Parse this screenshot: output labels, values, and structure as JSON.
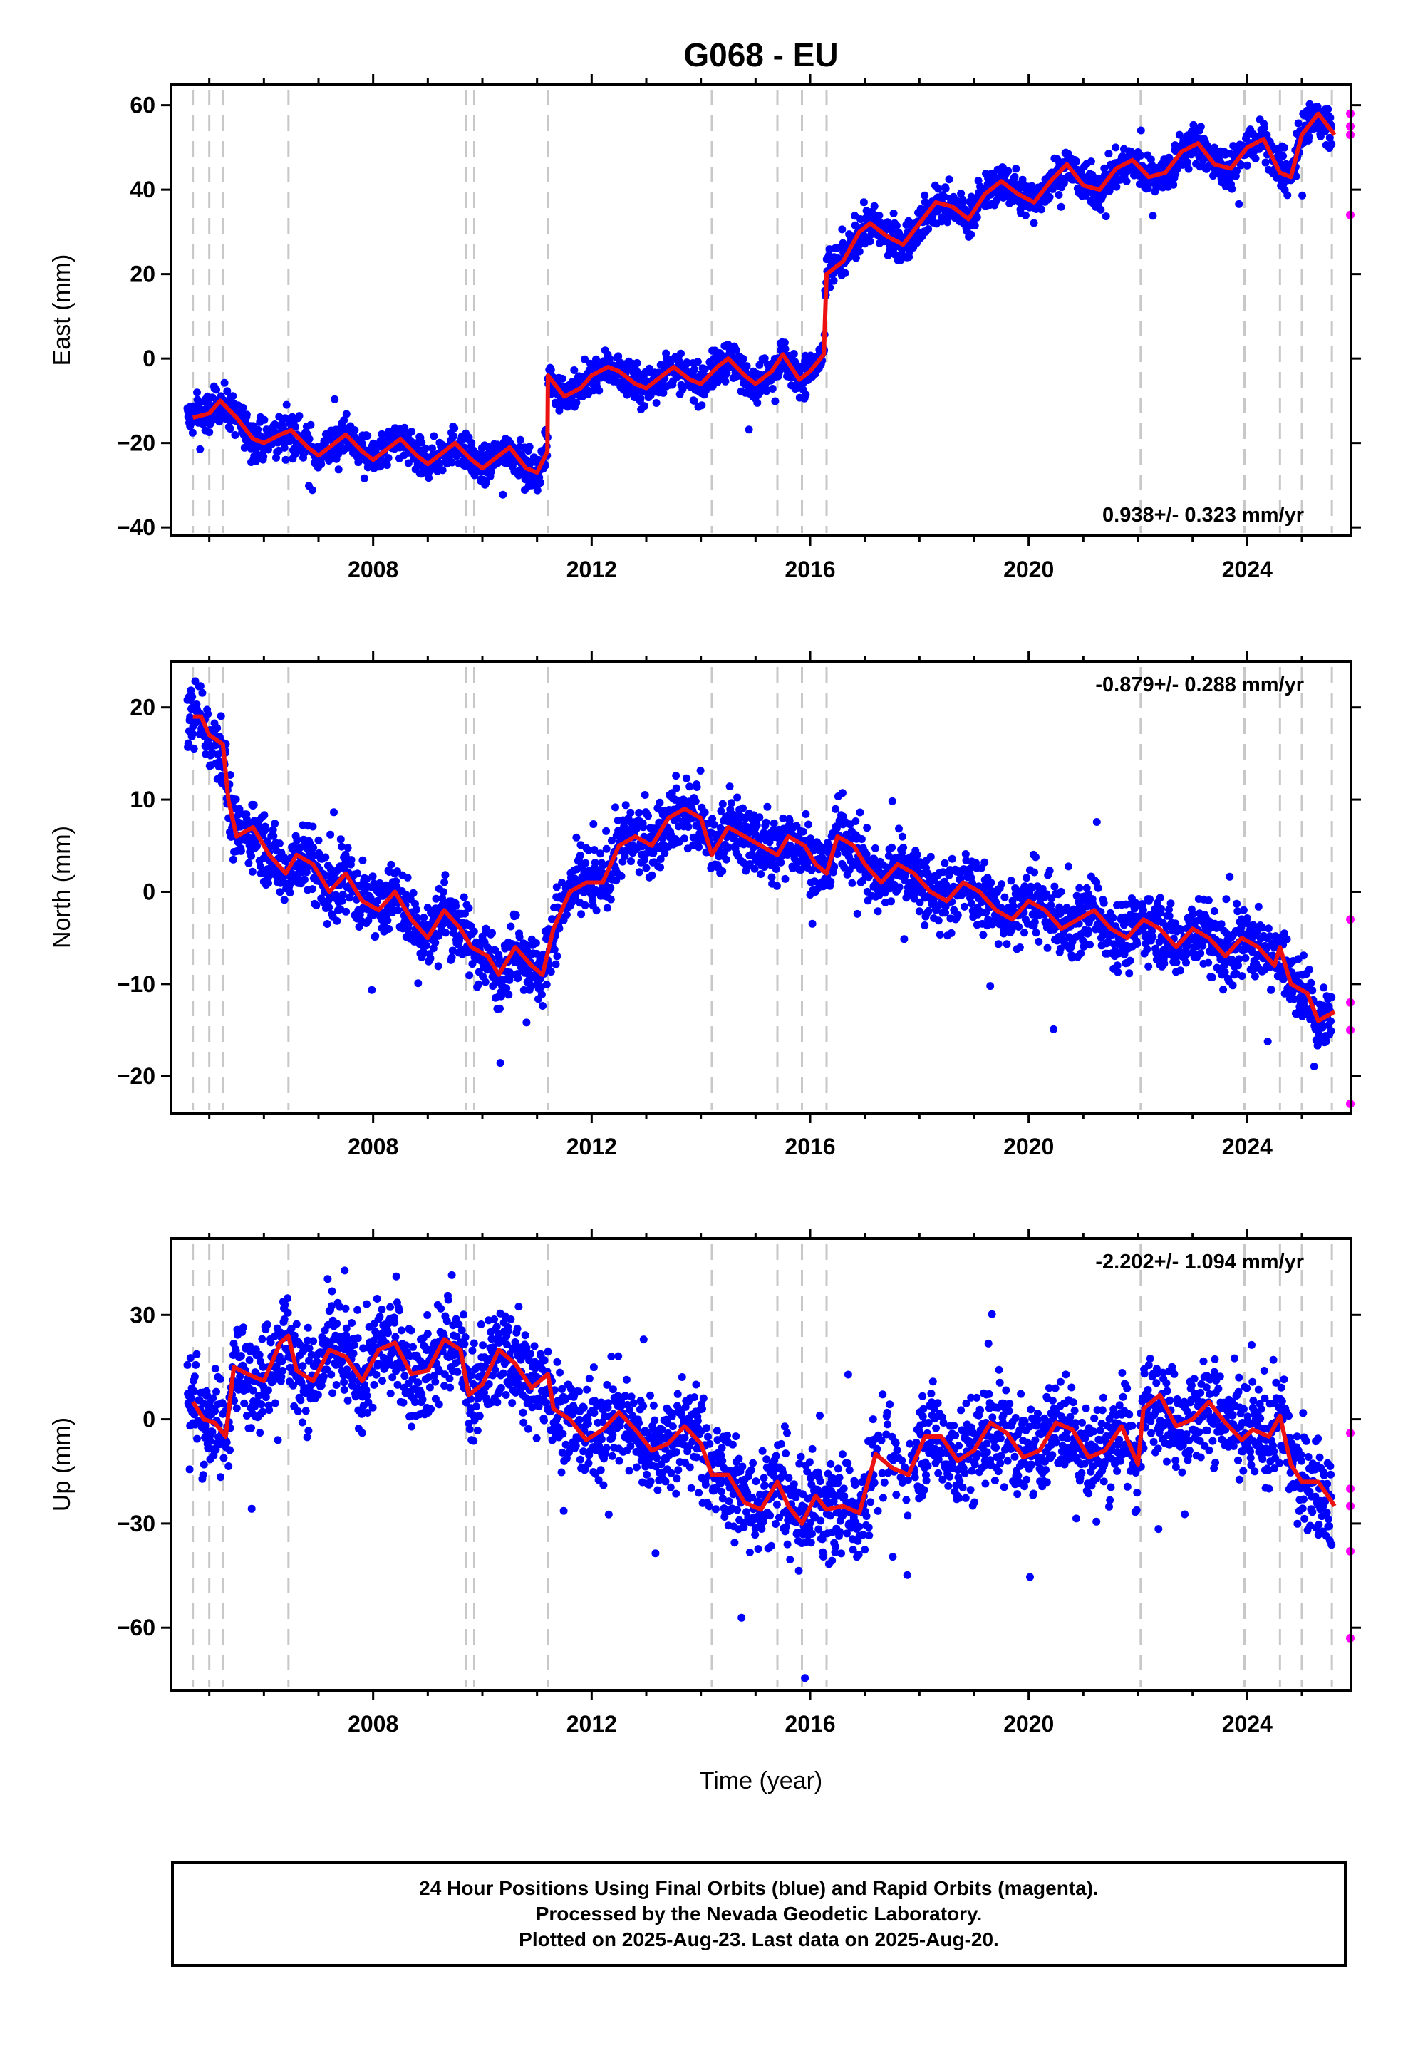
{
  "chart_data": {
    "type": "scatter",
    "title": "G068 - EU",
    "xlabel": "Time (year)",
    "x_ticks": [
      2008,
      2012,
      2016,
      2020,
      2024
    ],
    "xlim": [
      2004.3,
      2025.9
    ],
    "event_lines": [
      2004.7,
      2005.0,
      2005.25,
      2006.45,
      2009.7,
      2009.85,
      2011.2,
      2014.2,
      2015.4,
      2015.85,
      2016.3,
      2022.05,
      2023.95,
      2024.6,
      2025.0,
      2025.55
    ],
    "panels": [
      {
        "key": "east",
        "ylabel": "East (mm)",
        "ylim": [
          -42,
          65
        ],
        "y_ticks": [
          -40,
          -20,
          0,
          20,
          40,
          60
        ],
        "rate_label": "0.938+/- 0.323 mm/yr",
        "rate_position": "bottom-right",
        "trend": [
          [
            2004.7,
            -14
          ],
          [
            2005.0,
            -13
          ],
          [
            2005.2,
            -10
          ],
          [
            2005.5,
            -14
          ],
          [
            2005.8,
            -19
          ],
          [
            2006.0,
            -20
          ],
          [
            2006.3,
            -18
          ],
          [
            2006.5,
            -17
          ],
          [
            2006.8,
            -21
          ],
          [
            2007.0,
            -23
          ],
          [
            2007.3,
            -20
          ],
          [
            2007.5,
            -18
          ],
          [
            2007.8,
            -22
          ],
          [
            2008.0,
            -24
          ],
          [
            2008.3,
            -21
          ],
          [
            2008.5,
            -19
          ],
          [
            2008.8,
            -23
          ],
          [
            2009.0,
            -25
          ],
          [
            2009.3,
            -22
          ],
          [
            2009.5,
            -20
          ],
          [
            2009.8,
            -24
          ],
          [
            2010.0,
            -26
          ],
          [
            2010.3,
            -23
          ],
          [
            2010.5,
            -21
          ],
          [
            2010.8,
            -26
          ],
          [
            2011.0,
            -27
          ],
          [
            2011.19,
            -22
          ],
          [
            2011.2,
            -4
          ],
          [
            2011.5,
            -9
          ],
          [
            2011.8,
            -7
          ],
          [
            2012.0,
            -4
          ],
          [
            2012.3,
            -2
          ],
          [
            2012.5,
            -3
          ],
          [
            2012.8,
            -6
          ],
          [
            2013.0,
            -7
          ],
          [
            2013.3,
            -4
          ],
          [
            2013.5,
            -2
          ],
          [
            2013.8,
            -5
          ],
          [
            2014.0,
            -6
          ],
          [
            2014.3,
            -2
          ],
          [
            2014.5,
            0
          ],
          [
            2014.8,
            -4
          ],
          [
            2015.0,
            -6
          ],
          [
            2015.3,
            -3
          ],
          [
            2015.5,
            1
          ],
          [
            2015.8,
            -5
          ],
          [
            2016.0,
            -3
          ],
          [
            2016.25,
            1
          ],
          [
            2016.3,
            20
          ],
          [
            2016.6,
            23
          ],
          [
            2016.9,
            30
          ],
          [
            2017.1,
            32
          ],
          [
            2017.4,
            29
          ],
          [
            2017.7,
            27
          ],
          [
            2018.0,
            32
          ],
          [
            2018.3,
            37
          ],
          [
            2018.6,
            36
          ],
          [
            2018.9,
            33
          ],
          [
            2019.2,
            39
          ],
          [
            2019.5,
            42
          ],
          [
            2019.8,
            39
          ],
          [
            2020.1,
            37
          ],
          [
            2020.4,
            42
          ],
          [
            2020.7,
            46
          ],
          [
            2021.0,
            41
          ],
          [
            2021.3,
            40
          ],
          [
            2021.6,
            45
          ],
          [
            2021.9,
            47
          ],
          [
            2022.2,
            43
          ],
          [
            2022.5,
            44
          ],
          [
            2022.8,
            49
          ],
          [
            2023.1,
            51
          ],
          [
            2023.4,
            46
          ],
          [
            2023.7,
            45
          ],
          [
            2024.0,
            50
          ],
          [
            2024.3,
            52
          ],
          [
            2024.6,
            44
          ],
          [
            2024.8,
            43
          ],
          [
            2025.0,
            53
          ],
          [
            2025.3,
            58
          ],
          [
            2025.6,
            53
          ]
        ],
        "rapid_points": [
          [
            2025.6,
            58
          ],
          [
            2025.6,
            55
          ],
          [
            2025.6,
            53
          ],
          [
            2025.6,
            34
          ]
        ]
      },
      {
        "key": "north",
        "ylabel": "North (mm)",
        "ylim": [
          -24,
          25
        ],
        "y_ticks": [
          -20,
          -10,
          0,
          10,
          20
        ],
        "rate_label": "-0.879+/- 0.288 mm/yr",
        "rate_position": "top-right",
        "trend": [
          [
            2004.7,
            19
          ],
          [
            2004.85,
            19
          ],
          [
            2005.0,
            17
          ],
          [
            2005.25,
            16
          ],
          [
            2005.35,
            10
          ],
          [
            2005.5,
            6
          ],
          [
            2005.8,
            7
          ],
          [
            2006.1,
            4
          ],
          [
            2006.4,
            2
          ],
          [
            2006.6,
            4
          ],
          [
            2006.9,
            3
          ],
          [
            2007.2,
            0
          ],
          [
            2007.5,
            2
          ],
          [
            2007.8,
            -1
          ],
          [
            2008.1,
            -2
          ],
          [
            2008.4,
            0
          ],
          [
            2008.7,
            -3
          ],
          [
            2009.0,
            -5
          ],
          [
            2009.3,
            -2
          ],
          [
            2009.6,
            -4
          ],
          [
            2009.8,
            -6
          ],
          [
            2010.1,
            -7
          ],
          [
            2010.3,
            -9
          ],
          [
            2010.6,
            -6
          ],
          [
            2010.9,
            -8
          ],
          [
            2011.1,
            -9
          ],
          [
            2011.3,
            -4
          ],
          [
            2011.6,
            0
          ],
          [
            2011.9,
            1
          ],
          [
            2012.2,
            1
          ],
          [
            2012.5,
            5
          ],
          [
            2012.8,
            6
          ],
          [
            2013.1,
            5
          ],
          [
            2013.4,
            8
          ],
          [
            2013.7,
            9
          ],
          [
            2014.0,
            8
          ],
          [
            2014.2,
            4
          ],
          [
            2014.5,
            7
          ],
          [
            2014.8,
            6
          ],
          [
            2015.1,
            5
          ],
          [
            2015.4,
            4
          ],
          [
            2015.6,
            6
          ],
          [
            2015.9,
            5
          ],
          [
            2016.1,
            3
          ],
          [
            2016.3,
            2
          ],
          [
            2016.5,
            6
          ],
          [
            2016.8,
            5
          ],
          [
            2017.0,
            3
          ],
          [
            2017.3,
            1
          ],
          [
            2017.6,
            3
          ],
          [
            2017.9,
            2
          ],
          [
            2018.2,
            0
          ],
          [
            2018.5,
            -1
          ],
          [
            2018.8,
            1
          ],
          [
            2019.1,
            0
          ],
          [
            2019.4,
            -2
          ],
          [
            2019.7,
            -3
          ],
          [
            2020.0,
            -1
          ],
          [
            2020.3,
            -2
          ],
          [
            2020.6,
            -4
          ],
          [
            2020.9,
            -3
          ],
          [
            2021.2,
            -2
          ],
          [
            2021.5,
            -4
          ],
          [
            2021.8,
            -5
          ],
          [
            2022.1,
            -3
          ],
          [
            2022.4,
            -4
          ],
          [
            2022.7,
            -6
          ],
          [
            2023.0,
            -4
          ],
          [
            2023.3,
            -5
          ],
          [
            2023.6,
            -7
          ],
          [
            2023.9,
            -5
          ],
          [
            2024.2,
            -6
          ],
          [
            2024.5,
            -8
          ],
          [
            2024.6,
            -6
          ],
          [
            2024.8,
            -10
          ],
          [
            2025.1,
            -11
          ],
          [
            2025.3,
            -14
          ],
          [
            2025.6,
            -13
          ]
        ],
        "rapid_points": [
          [
            2025.6,
            -3
          ],
          [
            2025.6,
            -12
          ],
          [
            2025.6,
            -15
          ],
          [
            2025.6,
            -23
          ]
        ]
      },
      {
        "key": "up",
        "ylabel": "Up (mm)",
        "ylim": [
          -78,
          52
        ],
        "y_ticks": [
          -60,
          -30,
          0,
          30
        ],
        "rate_label": "-2.202+/- 1.094 mm/yr",
        "rate_position": "top-right",
        "trend": [
          [
            2004.7,
            5
          ],
          [
            2004.9,
            0
          ],
          [
            2005.1,
            -1
          ],
          [
            2005.3,
            -5
          ],
          [
            2005.45,
            15
          ],
          [
            2005.7,
            13
          ],
          [
            2006.0,
            11
          ],
          [
            2006.3,
            22
          ],
          [
            2006.45,
            24
          ],
          [
            2006.6,
            14
          ],
          [
            2006.9,
            11
          ],
          [
            2007.2,
            20
          ],
          [
            2007.5,
            18
          ],
          [
            2007.8,
            11
          ],
          [
            2008.1,
            20
          ],
          [
            2008.4,
            22
          ],
          [
            2008.7,
            13
          ],
          [
            2009.0,
            14
          ],
          [
            2009.3,
            23
          ],
          [
            2009.6,
            20
          ],
          [
            2009.75,
            7
          ],
          [
            2010.0,
            10
          ],
          [
            2010.3,
            20
          ],
          [
            2010.6,
            16
          ],
          [
            2010.9,
            9
          ],
          [
            2011.2,
            13
          ],
          [
            2011.3,
            3
          ],
          [
            2011.6,
            0
          ],
          [
            2011.9,
            -6
          ],
          [
            2012.2,
            -3
          ],
          [
            2012.5,
            2
          ],
          [
            2012.8,
            -3
          ],
          [
            2013.1,
            -9
          ],
          [
            2013.4,
            -7
          ],
          [
            2013.7,
            -2
          ],
          [
            2014.0,
            -7
          ],
          [
            2014.2,
            -16
          ],
          [
            2014.5,
            -16
          ],
          [
            2014.8,
            -24
          ],
          [
            2015.1,
            -26
          ],
          [
            2015.4,
            -18
          ],
          [
            2015.6,
            -25
          ],
          [
            2015.85,
            -30
          ],
          [
            2016.1,
            -22
          ],
          [
            2016.3,
            -26
          ],
          [
            2016.6,
            -25
          ],
          [
            2016.9,
            -27
          ],
          [
            2017.2,
            -10
          ],
          [
            2017.5,
            -14
          ],
          [
            2017.8,
            -16
          ],
          [
            2018.1,
            -5
          ],
          [
            2018.4,
            -5
          ],
          [
            2018.7,
            -12
          ],
          [
            2019.0,
            -9
          ],
          [
            2019.3,
            -1
          ],
          [
            2019.6,
            -4
          ],
          [
            2019.9,
            -11
          ],
          [
            2020.2,
            -9
          ],
          [
            2020.5,
            -1
          ],
          [
            2020.8,
            -3
          ],
          [
            2021.1,
            -11
          ],
          [
            2021.4,
            -9
          ],
          [
            2021.7,
            -2
          ],
          [
            2022.0,
            -13
          ],
          [
            2022.1,
            3
          ],
          [
            2022.4,
            7
          ],
          [
            2022.7,
            -2
          ],
          [
            2023.0,
            0
          ],
          [
            2023.3,
            5
          ],
          [
            2023.6,
            -1
          ],
          [
            2023.9,
            -6
          ],
          [
            2024.1,
            -3
          ],
          [
            2024.4,
            -5
          ],
          [
            2024.6,
            1
          ],
          [
            2024.8,
            -13
          ],
          [
            2025.0,
            -18
          ],
          [
            2025.3,
            -18
          ],
          [
            2025.6,
            -25
          ]
        ],
        "rapid_points": [
          [
            2025.6,
            -4
          ],
          [
            2025.6,
            -20
          ],
          [
            2025.6,
            -25
          ],
          [
            2025.6,
            -38
          ],
          [
            2025.6,
            -63
          ]
        ]
      }
    ],
    "series": [
      {
        "name": "Final Orbits",
        "color": "#0000ff"
      },
      {
        "name": "Rapid Orbits",
        "color": "#ff00ff"
      },
      {
        "name": "Model",
        "color": "#ee1111"
      }
    ]
  },
  "footer": {
    "line1": "24 Hour Positions Using Final Orbits (blue) and Rapid Orbits (magenta).",
    "line2": "Processed by the Nevada Geodetic Laboratory.",
    "line3": "Plotted on 2025-Aug-23. Last data on 2025-Aug-20."
  }
}
